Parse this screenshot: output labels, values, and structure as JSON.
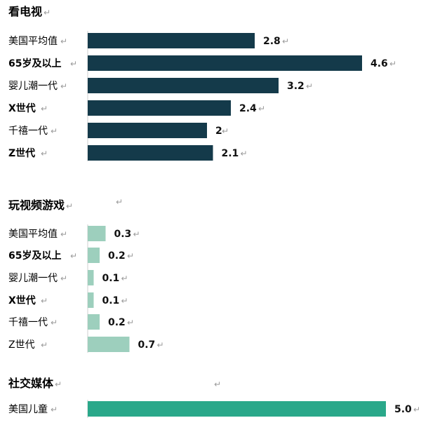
{
  "chart_data": [
    {
      "type": "bar",
      "title": "看电视",
      "categories": [
        "美国平均值",
        "65岁及以上",
        "婴儿潮一代",
        "X世代",
        "千禧一代",
        "Z世代"
      ],
      "values": [
        2.8,
        4.6,
        3.2,
        2.4,
        2,
        2.1
      ],
      "value_labels": [
        "2.8",
        "4.6",
        "3.2",
        "2.4",
        "2",
        "2.1"
      ],
      "color": "#143a4a"
    },
    {
      "type": "bar",
      "title": "玩视频游戏",
      "categories": [
        "美国平均值",
        "65岁及以上",
        "婴儿潮一代",
        "X世代",
        "千禧一代",
        "Z世代"
      ],
      "values": [
        0.3,
        0.2,
        0.1,
        0.1,
        0.2,
        0.7
      ],
      "value_labels": [
        "0.3",
        "0.2",
        "0.1",
        "0.1",
        "0.2",
        "0.7"
      ],
      "color": "#9dcfbd"
    },
    {
      "type": "bar",
      "title": "社交媒体",
      "categories": [
        "美国儿童"
      ],
      "values": [
        5.0
      ],
      "value_labels": [
        "5.0"
      ],
      "color": "#2aa88a"
    }
  ],
  "return_mark": "↵"
}
